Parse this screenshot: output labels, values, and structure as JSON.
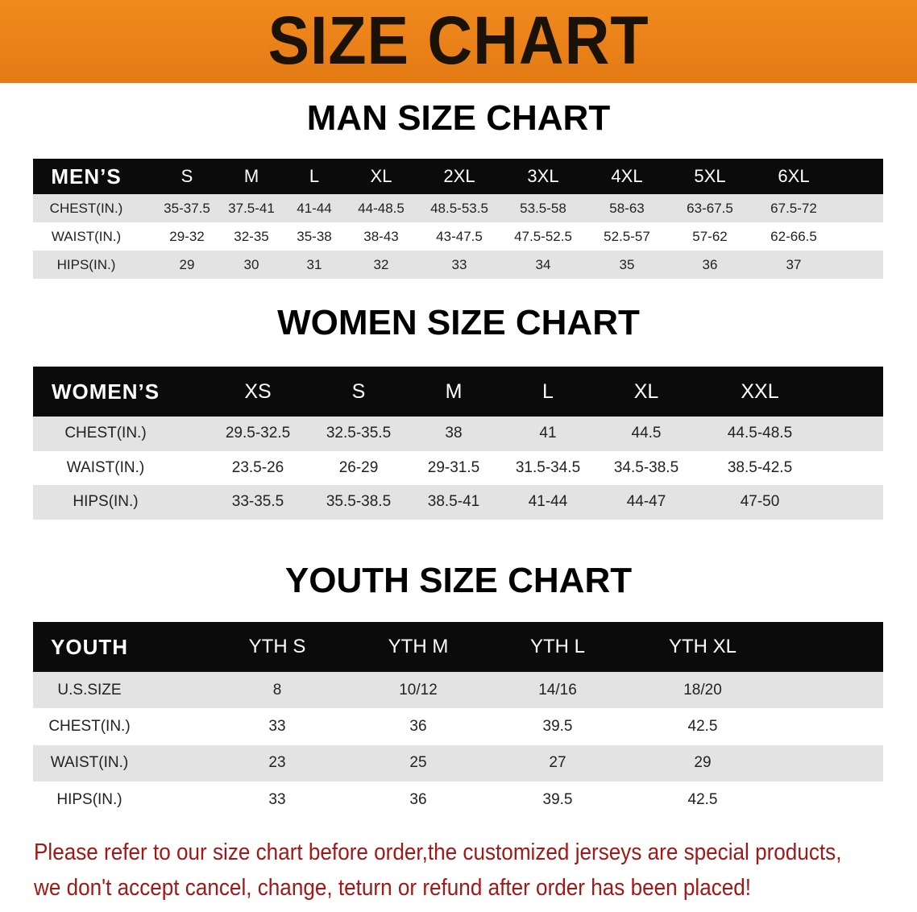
{
  "banner": {
    "title": "SIZE CHART",
    "color": "#e8801a"
  },
  "men": {
    "title": "MAN SIZE CHART",
    "header": [
      "MEN’S",
      "S",
      "M",
      "L",
      "XL",
      "2XL",
      "3XL",
      "4XL",
      "5XL",
      "6XL"
    ],
    "rows": [
      [
        "CHEST(IN.)",
        "35-37.5",
        "37.5-41",
        "41-44",
        "44-48.5",
        "48.5-53.5",
        "53.5-58",
        "58-63",
        "63-67.5",
        "67.5-72"
      ],
      [
        "WAIST(IN.)",
        "29-32",
        "32-35",
        "35-38",
        "38-43",
        "43-47.5",
        "47.5-52.5",
        "52.5-57",
        "57-62",
        "62-66.5"
      ],
      [
        "HIPS(IN.)",
        "29",
        "30",
        "31",
        "32",
        "33",
        "34",
        "35",
        "36",
        "37"
      ]
    ]
  },
  "women": {
    "title": "WOMEN SIZE CHART",
    "header": [
      "WOMEN’S",
      "XS",
      "S",
      "M",
      "L",
      "XL",
      "XXL"
    ],
    "rows": [
      [
        "CHEST(IN.)",
        "29.5-32.5",
        "32.5-35.5",
        "38",
        "41",
        "44.5",
        "44.5-48.5"
      ],
      [
        "WAIST(IN.)",
        "23.5-26",
        "26-29",
        "29-31.5",
        "31.5-34.5",
        "34.5-38.5",
        "38.5-42.5"
      ],
      [
        "HIPS(IN.)",
        "33-35.5",
        "35.5-38.5",
        "38.5-41",
        "41-44",
        "44-47",
        "47-50"
      ]
    ]
  },
  "youth": {
    "title": "YOUTH SIZE CHART",
    "header": [
      "YOUTH",
      "YTH S",
      "YTH M",
      "YTH L",
      "YTH XL"
    ],
    "rows": [
      [
        "U.S.SIZE",
        "8",
        "10/12",
        "14/16",
        "18/20"
      ],
      [
        "CHEST(IN.)",
        "33",
        "36",
        "39.5",
        "42.5"
      ],
      [
        "WAIST(IN.)",
        "23",
        "25",
        "27",
        "29"
      ],
      [
        "HIPS(IN.)",
        "33",
        "36",
        "39.5",
        "42.5"
      ]
    ]
  },
  "notice": {
    "line1": "Please refer to our size chart before order,the customized jerseys are special products,",
    "line2": "we don't accept cancel, change, teturn or refund after order has been placed!",
    "color": "#a01818"
  }
}
